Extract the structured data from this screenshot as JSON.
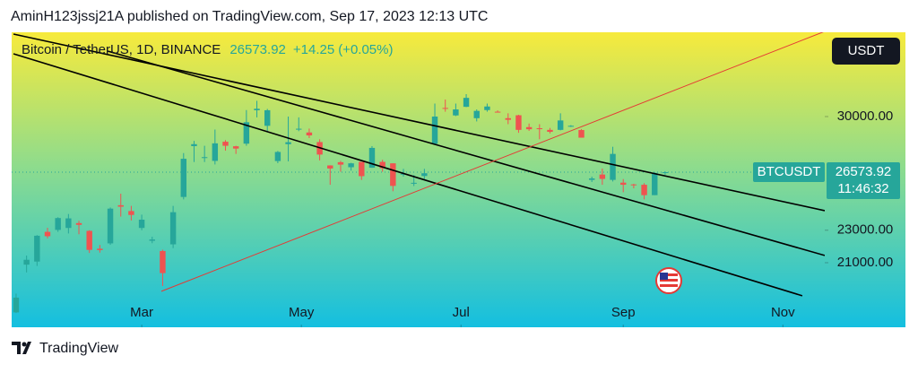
{
  "published": "AminH123jssj21A published on TradingView.com, Sep 17, 2023 12:13 UTC",
  "brand": "TradingView",
  "chart_data": {
    "type": "candlestick",
    "title": "Bitcoin / TetherUS, 1D, BINANCE",
    "last_price": 26573.92,
    "change": "+14.25",
    "change_pct": "(+0.05%)",
    "symbol": "BTCUSDT",
    "countdown": "11:46:32",
    "currency": "USDT",
    "up_color": "#26a69a",
    "down_color": "#ef5350",
    "x": [
      12,
      16,
      20,
      24,
      28,
      32,
      36,
      40,
      44,
      48,
      52,
      56,
      60,
      64,
      68,
      72,
      76,
      80,
      84,
      88,
      92,
      96,
      100,
      104,
      108,
      112,
      116,
      120,
      124,
      128,
      132,
      136,
      140,
      144,
      148,
      152,
      156,
      160,
      164,
      168,
      172,
      176,
      180,
      184,
      188,
      192,
      196,
      200,
      204,
      208,
      212,
      216,
      220,
      224,
      228,
      232,
      236,
      240,
      244,
      248,
      252,
      256,
      260
    ],
    "open": [
      17940,
      20880,
      21070,
      22900,
      23020,
      23140,
      23440,
      22960,
      21860,
      22190,
      24540,
      24180,
      23140,
      22350,
      21720,
      22130,
      25050,
      28180,
      27480,
      27270,
      28450,
      28170,
      28330,
      30390,
      29430,
      27260,
      28300,
      29230,
      29020,
      28430,
      26990,
      27190,
      26880,
      27210,
      26850,
      27210,
      27120,
      26480,
      25900,
      26340,
      28320,
      30530,
      30070,
      30600,
      29900,
      30400,
      30300,
      29900,
      30080,
      29350,
      29280,
      29180,
      29180,
      29400,
      29170,
      26100,
      26430,
      26100,
      25930,
      25820,
      25800,
      25160,
      26560
    ],
    "high": [
      19100,
      21440,
      22700,
      23150,
      23800,
      24000,
      23580,
      23000,
      22090,
      24400,
      25250,
      24500,
      23960,
      22600,
      21800,
      24500,
      27750,
      28500,
      28200,
      29200,
      28550,
      28200,
      30400,
      30970,
      30470,
      27880,
      30000,
      29950,
      29260,
      28600,
      27000,
      27270,
      27150,
      27210,
      28180,
      27340,
      27120,
      26780,
      26400,
      26780,
      30800,
      31050,
      30800,
      31380,
      30440,
      30800,
      30380,
      30200,
      30110,
      29570,
      29530,
      29300,
      30200,
      29470,
      29230,
      26300,
      26800,
      28140,
      26150,
      25860,
      25900,
      26560,
      26620
    ],
    "low": [
      17900,
      20400,
      20800,
      22500,
      22900,
      22800,
      22750,
      21600,
      21620,
      22100,
      23840,
      23600,
      23000,
      22200,
      19570,
      21900,
      24900,
      27200,
      27200,
      27050,
      27900,
      27700,
      28200,
      29950,
      29100,
      27130,
      27240,
      29100,
      28680,
      27300,
      25800,
      26600,
      26670,
      26100,
      26840,
      26600,
      25400,
      26300,
      25720,
      26150,
      28260,
      30300,
      30030,
      30580,
      29700,
      30300,
      30250,
      29530,
      29000,
      29120,
      28600,
      28960,
      29150,
      29360,
      28700,
      25970,
      25800,
      26000,
      25340,
      25580,
      24900,
      25160,
      26420
    ],
    "close": [
      18850,
      21180,
      22660,
      22630,
      23750,
      23730,
      23330,
      21790,
      21780,
      24330,
      24450,
      23940,
      23650,
      22430,
      20360,
      24110,
      27400,
      28300,
      27500,
      28350,
      28200,
      28030,
      29650,
      30480,
      30390,
      27820,
      28420,
      29250,
      28840,
      27660,
      26800,
      27040,
      27120,
      26330,
      28070,
      26820,
      25730,
      26480,
      25920,
      26510,
      30000,
      30480,
      30440,
      31150,
      30350,
      30620,
      30290,
      29800,
      29180,
      29220,
      29230,
      29060,
      29760,
      29430,
      28700,
      26190,
      26160,
      27700,
      25800,
      25780,
      25160,
      26530,
      26574
    ],
    "xlim": [
      10.3,
      321
    ],
    "xticks": [
      {
        "value": 60,
        "label": "Mar"
      },
      {
        "value": 121,
        "label": "May"
      },
      {
        "value": 182,
        "label": "Jul"
      },
      {
        "value": 244,
        "label": "Sep"
      },
      {
        "value": 305,
        "label": "Nov"
      }
    ],
    "ylim": [
      18680,
      35080
    ],
    "yticks": [
      {
        "value": 30000,
        "label": "30000.00"
      },
      {
        "value": 23000,
        "label": "23000.00"
      },
      {
        "value": 21000,
        "label": "21000.00"
      }
    ],
    "lines": [
      {
        "color": "#000000",
        "x": [
          11,
          321
        ],
        "y": [
          35080,
          24205
        ]
      },
      {
        "color": "#000000",
        "x": [
          47,
          321
        ],
        "y": [
          34030,
          21446
        ]
      },
      {
        "color": "#000000",
        "x": [
          11,
          312.4
        ],
        "y": [
          33866,
          18962
        ]
      },
      {
        "color": "#e53935",
        "x": [
          67.5,
          321
        ],
        "y": [
          19238,
          35246
        ]
      }
    ]
  }
}
